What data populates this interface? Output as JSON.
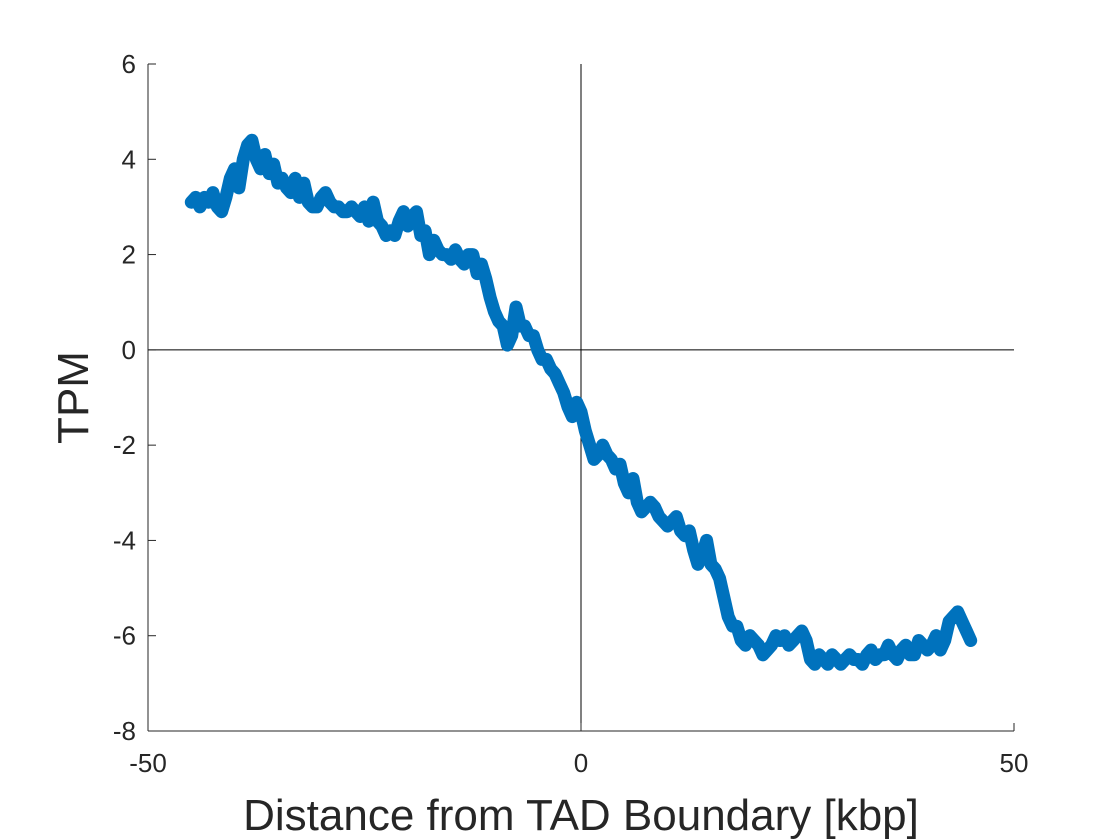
{
  "chart_data": {
    "type": "line",
    "title": "",
    "xlabel": "Distance from TAD Boundary [kbp]",
    "ylabel": "TPM",
    "xlim": [
      -50,
      50
    ],
    "ylim": [
      -8,
      6
    ],
    "x_ticks": [
      -50,
      0,
      50
    ],
    "y_ticks": [
      -8,
      -6,
      -4,
      -2,
      0,
      2,
      4,
      6
    ],
    "x_tick_labels": [
      "-50",
      "0",
      "50"
    ],
    "y_tick_labels": [
      "-8",
      "-6",
      "-4",
      "-2",
      "0",
      "2",
      "4",
      "6"
    ],
    "grid": false,
    "reference_lines": {
      "x": 0,
      "y": 0
    },
    "series_color": "#0072BD",
    "series": [
      {
        "x": [
          -45,
          -44.5,
          -44,
          -43.5,
          -43,
          -42.5,
          -42,
          -41.5,
          -41,
          -40.5,
          -40,
          -39.5,
          -39,
          -38.5,
          -38,
          -37.5,
          -37,
          -36.5,
          -36,
          -35.5,
          -35,
          -34.5,
          -34,
          -33.5,
          -33,
          -32.5,
          -32,
          -31.5,
          -31,
          -30.5,
          -30,
          -29.5,
          -29,
          -28.5,
          -28,
          -27.5,
          -27,
          -26.5,
          -26,
          -25.5,
          -25,
          -24.5,
          -24,
          -23.5,
          -23,
          -22.5,
          -22,
          -21.5,
          -21,
          -20.5,
          -20,
          -19.5,
          -19,
          -18.5,
          -18,
          -17.5,
          -17,
          -16.5,
          -16,
          -15.5,
          -15,
          -14.5,
          -14,
          -13.5,
          -13,
          -12.5,
          -12,
          -11.5,
          -11,
          -10.5,
          -10,
          -9.5,
          -9,
          -8.5,
          -8,
          -7.5,
          -7,
          -6.5,
          -6,
          -5.5,
          -5,
          -4.5,
          -4,
          -3.5,
          -3,
          -2.5,
          -2,
          -1.5,
          -1,
          -0.5,
          0,
          0.5,
          1,
          1.5,
          2,
          2.5,
          3,
          3.5,
          4,
          4.5,
          5,
          5.5,
          6,
          6.5,
          7,
          7.5,
          8,
          8.5,
          9,
          9.5,
          10,
          10.5,
          11,
          11.5,
          12,
          12.5,
          13,
          13.5,
          14,
          14.5,
          15,
          15.5,
          16,
          16.5,
          17,
          17.5,
          18,
          18.5,
          19,
          19.5,
          20,
          20.5,
          21,
          21.5,
          22,
          22.5,
          23,
          23.5,
          24,
          24.5,
          25,
          25.5,
          26,
          26.5,
          27,
          27.5,
          28,
          28.5,
          29,
          29.5,
          30,
          30.5,
          31,
          31.5,
          32,
          32.5,
          33,
          33.5,
          34,
          34.5,
          35,
          35.5,
          36,
          36.5,
          37,
          37.5,
          38,
          38.5,
          39,
          39.5,
          40,
          40.5,
          41,
          41.5,
          42,
          42.5,
          43,
          43.5,
          44,
          44.5,
          45
        ],
        "values": [
          3.1,
          3.2,
          3.0,
          3.2,
          3.1,
          3.3,
          3.0,
          2.9,
          3.2,
          3.6,
          3.8,
          3.4,
          4.0,
          4.3,
          4.4,
          4.0,
          3.8,
          4.1,
          3.7,
          3.9,
          3.5,
          3.6,
          3.4,
          3.3,
          3.6,
          3.2,
          3.5,
          3.1,
          3.0,
          3.0,
          3.2,
          3.3,
          3.1,
          3.0,
          3.0,
          2.9,
          2.9,
          3.0,
          2.9,
          2.8,
          3.0,
          2.7,
          3.1,
          2.7,
          2.6,
          2.4,
          2.5,
          2.4,
          2.7,
          2.9,
          2.6,
          2.8,
          2.9,
          2.4,
          2.5,
          2.0,
          2.3,
          2.1,
          2.0,
          2.0,
          1.9,
          2.1,
          1.9,
          1.8,
          2.0,
          2.0,
          1.6,
          1.8,
          1.5,
          1.1,
          0.8,
          0.6,
          0.5,
          0.1,
          0.3,
          0.9,
          0.5,
          0.5,
          0.3,
          0.3,
          0.0,
          -0.2,
          -0.2,
          -0.4,
          -0.5,
          -0.7,
          -0.9,
          -1.2,
          -1.4,
          -1.1,
          -1.3,
          -1.7,
          -2.0,
          -2.3,
          -2.2,
          -2.0,
          -2.2,
          -2.3,
          -2.5,
          -2.4,
          -2.8,
          -3.0,
          -2.7,
          -3.2,
          -3.4,
          -3.3,
          -3.2,
          -3.3,
          -3.5,
          -3.6,
          -3.7,
          -3.6,
          -3.5,
          -3.8,
          -3.9,
          -3.8,
          -4.2,
          -4.5,
          -4.3,
          -4.0,
          -4.5,
          -4.6,
          -4.8,
          -5.2,
          -5.6,
          -5.8,
          -5.8,
          -6.1,
          -6.2,
          -6.0,
          -6.1,
          -6.2,
          -6.4,
          -6.3,
          -6.2,
          -6.0,
          -6.1,
          -6.0,
          -6.2,
          -6.1,
          -6.0,
          -5.9,
          -6.1,
          -6.5,
          -6.6,
          -6.4,
          -6.5,
          -6.6,
          -6.4,
          -6.5,
          -6.6,
          -6.5,
          -6.4,
          -6.5,
          -6.5,
          -6.6,
          -6.4,
          -6.3,
          -6.5,
          -6.4,
          -6.4,
          -6.2,
          -6.4,
          -6.5,
          -6.3,
          -6.2,
          -6.4,
          -6.4,
          -6.1,
          -6.2,
          -6.3,
          -6.2,
          -6.0,
          -6.3,
          -6.1,
          -5.7,
          -5.6,
          -5.5,
          -5.7,
          -5.9,
          -6.1
        ]
      }
    ]
  }
}
